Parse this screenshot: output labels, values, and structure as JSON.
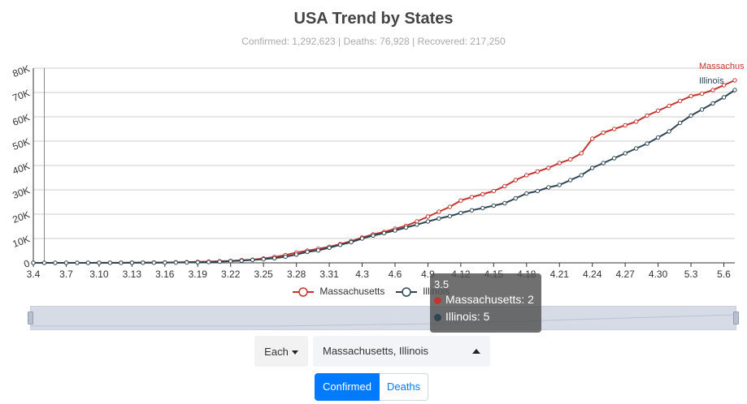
{
  "chart_data": {
    "type": "line",
    "title": "USA Trend by States",
    "subtitle": "Confirmed: 1,292,623 | Deaths: 76,928 | Recovered: 217,250",
    "x": [
      "3.4",
      "3.5",
      "3.6",
      "3.7",
      "3.8",
      "3.9",
      "3.10",
      "3.11",
      "3.12",
      "3.13",
      "3.14",
      "3.15",
      "3.16",
      "3.17",
      "3.18",
      "3.19",
      "3.20",
      "3.21",
      "3.22",
      "3.23",
      "3.24",
      "3.25",
      "3.26",
      "3.27",
      "3.28",
      "3.29",
      "3.30",
      "3.31",
      "4.1",
      "4.2",
      "4.3",
      "4.4",
      "4.5",
      "4.6",
      "4.7",
      "4.8",
      "4.9",
      "4.10",
      "4.11",
      "4.12",
      "4.13",
      "4.14",
      "4.15",
      "4.16",
      "4.17",
      "4.18",
      "4.19",
      "4.20",
      "4.21",
      "4.22",
      "4.23",
      "4.24",
      "4.25",
      "4.26",
      "4.27",
      "4.28",
      "4.29",
      "4.30",
      "5.1",
      "5.2",
      "5.3",
      "5.4",
      "5.5",
      "5.6",
      "5.7"
    ],
    "x_tick_labels": [
      "3.4",
      "3.7",
      "3.10",
      "3.13",
      "3.16",
      "3.19",
      "3.22",
      "3.25",
      "3.28",
      "3.31",
      "4.3",
      "4.6",
      "4.9",
      "4.12",
      "4.15",
      "4.18",
      "4.21",
      "4.24",
      "4.27",
      "4.30",
      "5.3",
      "5.6"
    ],
    "y_tick_labels": [
      "0",
      "10K",
      "20K",
      "30K",
      "40K",
      "50K",
      "60K",
      "70K",
      "80K"
    ],
    "ylim": [
      0,
      80000
    ],
    "grid": true,
    "series": [
      {
        "name": "Massachusetts",
        "color": "#c23531",
        "values": [
          0,
          2,
          3,
          5,
          7,
          20,
          30,
          40,
          50,
          80,
          110,
          140,
          170,
          220,
          300,
          400,
          500,
          650,
          800,
          1100,
          1300,
          1800,
          2400,
          3200,
          4200,
          5000,
          5800,
          6600,
          7700,
          8900,
          10400,
          11700,
          12700,
          14000,
          15200,
          17000,
          19000,
          21000,
          23000,
          25600,
          27000,
          28200,
          29500,
          31500,
          34000,
          36000,
          37500,
          39000,
          41000,
          42500,
          45000,
          51000,
          53500,
          55000,
          56500,
          58000,
          60500,
          62500,
          64500,
          66500,
          68500,
          69500,
          71000,
          73000,
          75000
        ]
      },
      {
        "name": "Illinois",
        "color": "#2f4554",
        "values": [
          0,
          5,
          6,
          7,
          8,
          10,
          12,
          15,
          20,
          30,
          45,
          60,
          90,
          120,
          160,
          240,
          350,
          500,
          700,
          900,
          1200,
          1500,
          1900,
          2500,
          3400,
          4500,
          5100,
          6200,
          7400,
          8500,
          10000,
          11200,
          12200,
          13300,
          14500,
          15700,
          17000,
          18200,
          19200,
          20500,
          21600,
          22500,
          23500,
          24500,
          26500,
          28500,
          29500,
          31000,
          32000,
          34000,
          36000,
          39000,
          41000,
          43000,
          45000,
          47000,
          49000,
          51500,
          54000,
          57500,
          60500,
          63000,
          65500,
          68000,
          71000
        ]
      }
    ],
    "end_labels": [
      "Massachus",
      "Illinois"
    ],
    "legend_position": "bottom-center",
    "tooltip": {
      "title": "3.5",
      "rows": [
        {
          "text": "Massachusetts: 2",
          "color": "#c23531"
        },
        {
          "text": "Illinois: 5",
          "color": "#2f4554"
        }
      ]
    }
  },
  "controls": {
    "each_label": "Each",
    "states_value": "Massachusetts, Illinois",
    "tabs": [
      "Confirmed",
      "Deaths"
    ],
    "active_tab": "Confirmed"
  },
  "colors": {
    "accent": "#007bff",
    "zoom_fill": "#d6dbe6"
  }
}
